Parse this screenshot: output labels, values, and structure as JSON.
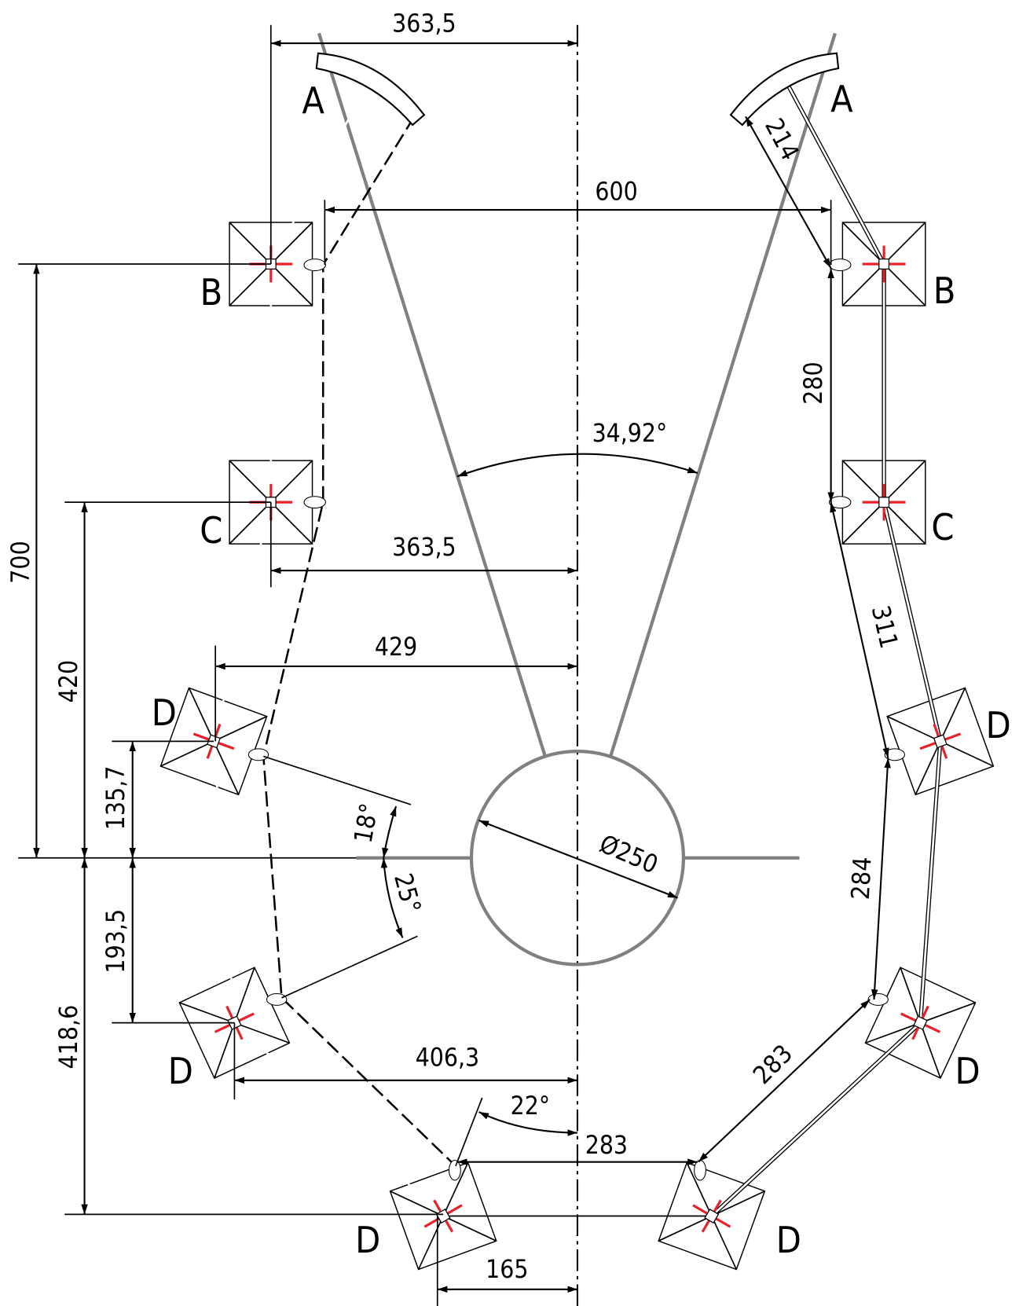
{
  "labels": [
    "A",
    "A",
    "B",
    "B",
    "C",
    "C",
    "D",
    "D",
    "D",
    "D",
    "D",
    "D"
  ],
  "dimensions": [
    "363,5",
    "600",
    "34,92°",
    "363,5",
    "429",
    "700",
    "420",
    "135,7",
    "18°",
    "25°",
    "Ø250",
    "193,5",
    "418,6",
    "406,3",
    "22°",
    "283",
    "165",
    "214",
    "280",
    "311",
    "284",
    "283"
  ]
}
